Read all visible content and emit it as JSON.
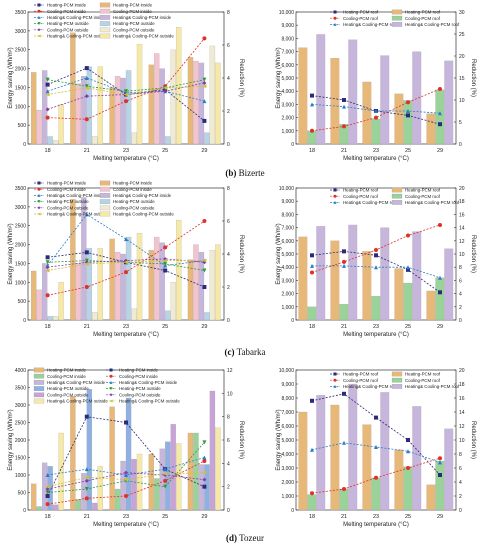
{
  "captions": [
    {
      "letter": "(b)",
      "text": "Bizerte"
    },
    {
      "letter": "(c)",
      "text": "Tabarka"
    },
    {
      "letter": "(d)",
      "text": "Tozeur"
    }
  ],
  "chart_data": [
    {
      "type": "bar",
      "panel": "b-left",
      "xlabel": "Melting temperature (°C)",
      "ylabel": "Energy saving (Wh/m²)",
      "y2label": "Reduction (%)",
      "categories": [
        "18",
        "21",
        "23",
        "25",
        "29"
      ],
      "ylim": [
        0,
        3500
      ],
      "yticks": [
        0,
        500,
        1000,
        1500,
        2000,
        2500,
        3000,
        3500
      ],
      "y2lim": [
        0,
        8
      ],
      "y2ticks": [
        0,
        2,
        4,
        6,
        8
      ],
      "legend_position": "top-left",
      "series": [
        {
          "name": "Heating-PCM inside",
          "kind": "bar",
          "color": "#e8b878",
          "values": [
            1900,
            2950,
            1500,
            2100,
            2300
          ]
        },
        {
          "name": "Cooling-PCM inside",
          "kind": "bar",
          "color": "#f3c4cf",
          "values": [
            900,
            1600,
            1800,
            2400,
            2200
          ]
        },
        {
          "name": "Heating& Cooling-PCM inside",
          "kind": "bar",
          "color": "#c7b6dc",
          "values": [
            1950,
            1800,
            1750,
            2000,
            2150
          ]
        },
        {
          "name": "Heating-PCM outside",
          "kind": "bar",
          "color": "#b7d4e7",
          "values": [
            200,
            2050,
            1950,
            200,
            300
          ]
        },
        {
          "name": "Cooling-PCM outside",
          "kind": "bar",
          "color": "#f0ead2",
          "values": [
            100,
            200,
            300,
            2500,
            2600
          ]
        },
        {
          "name": "Heating& Cooling-PCM outside",
          "kind": "bar",
          "color": "#f6e9a8",
          "values": [
            1050,
            2050,
            2650,
            3100,
            2150
          ]
        },
        {
          "name": "Heating-PCM inside",
          "kind": "line",
          "axis": "y2",
          "color": "#2b2b7a",
          "marker": "square",
          "values": [
            3.6,
            4.6,
            3.0,
            3.3,
            1.4
          ]
        },
        {
          "name": "Cooling-PCM inside",
          "kind": "line",
          "axis": "y2",
          "color": "#e0302a",
          "marker": "circle",
          "values": [
            1.6,
            1.5,
            2.6,
            3.5,
            6.4
          ]
        },
        {
          "name": "Heating& Cooling-PCM inside",
          "kind": "line",
          "axis": "y2",
          "color": "#2a7cc7",
          "marker": "triangle",
          "values": [
            3.2,
            4.0,
            3.1,
            3.2,
            2.6
          ]
        },
        {
          "name": "Heating-PCM outside",
          "kind": "line",
          "axis": "y2",
          "color": "#2a9b3a",
          "marker": "triangle-down",
          "values": [
            3.9,
            3.5,
            3.2,
            3.4,
            3.9
          ]
        },
        {
          "name": "Cooling-PCM outside",
          "kind": "line",
          "axis": "y2",
          "color": "#8a3aa8",
          "marker": "diamond",
          "values": [
            2.1,
            2.9,
            3.0,
            3.2,
            3.7
          ]
        },
        {
          "name": "Heating& Cooling-PCM outside",
          "kind": "line",
          "axis": "y2",
          "color": "#c9c233",
          "marker": "triangle-left",
          "values": [
            3.0,
            3.4,
            3.0,
            3.4,
            3.5
          ]
        }
      ]
    },
    {
      "type": "bar",
      "panel": "b-right",
      "xlabel": "Melting temperature (°C)",
      "ylabel": "Energy saving (Wh/m²)",
      "y2label": "Reduction (%)",
      "categories": [
        "18",
        "21",
        "23",
        "25",
        "29"
      ],
      "ylim": [
        0,
        10000
      ],
      "yticks": [
        0,
        1000,
        2000,
        3000,
        4000,
        5000,
        6000,
        7000,
        8000,
        9000,
        10000
      ],
      "y2lim": [
        0,
        30
      ],
      "y2ticks": [
        0,
        5,
        10,
        15,
        20,
        25,
        30
      ],
      "legend_position": "top",
      "series": [
        {
          "name": "Heating-PCM roof",
          "kind": "bar",
          "color": "#e8b878",
          "values": [
            7300,
            6500,
            4700,
            3800,
            2300
          ]
        },
        {
          "name": "Cooling-PCM roof",
          "kind": "bar",
          "color": "#9ad29a",
          "values": [
            1000,
            1500,
            1900,
            3300,
            4100
          ]
        },
        {
          "name": "Heating& Cooling-PCM roof",
          "kind": "bar",
          "color": "#c7b6dc",
          "values": [
            8300,
            7900,
            6700,
            7000,
            6300
          ]
        },
        {
          "name": "Heating-PCM roof",
          "kind": "line",
          "axis": "y2",
          "color": "#2b2b7a",
          "marker": "square",
          "values": [
            11,
            10,
            7.5,
            6.5,
            4.5
          ]
        },
        {
          "name": "Cooling-PCM roof",
          "kind": "line",
          "axis": "y2",
          "color": "#e0302a",
          "marker": "circle",
          "values": [
            3,
            4,
            6,
            9.5,
            12.5
          ]
        },
        {
          "name": "Heating& Cooling-PCM roof",
          "kind": "line",
          "axis": "y2",
          "color": "#2a7cc7",
          "marker": "triangle",
          "values": [
            9,
            8.5,
            7.5,
            7.5,
            7
          ]
        }
      ]
    },
    {
      "type": "bar",
      "panel": "c-left",
      "xlabel": "Melting temperature (°C)",
      "ylabel": "Energy saving (Wh/m²)",
      "y2label": "Reduction (%)",
      "categories": [
        "18",
        "21",
        "23",
        "25",
        "29"
      ],
      "ylim": [
        0,
        3500
      ],
      "yticks": [
        0,
        500,
        1000,
        1500,
        2000,
        2500,
        3000,
        3500
      ],
      "y2lim": [
        0,
        8
      ],
      "y2ticks": [
        0,
        2,
        4,
        6,
        8
      ],
      "legend_position": "top-left",
      "series": [
        {
          "name": "Heating-PCM inside",
          "kind": "bar",
          "color": "#e8b878",
          "values": [
            1300,
            3200,
            2150,
            1850,
            1600
          ]
        },
        {
          "name": "Cooling-PCM inside",
          "kind": "bar",
          "color": "#f3c4cf",
          "values": [
            800,
            1500,
            1800,
            2200,
            2000
          ]
        },
        {
          "name": "Heating& Cooling-PCM inside",
          "kind": "bar",
          "color": "#c7b6dc",
          "values": [
            1500,
            3250,
            1750,
            2050,
            1800
          ]
        },
        {
          "name": "Heating-PCM outside",
          "kind": "bar",
          "color": "#b7d4e7",
          "values": [
            100,
            1900,
            2200,
            250,
            200
          ]
        },
        {
          "name": "Cooling-PCM outside",
          "kind": "bar",
          "color": "#f0ead2",
          "values": [
            100,
            200,
            300,
            1000,
            1850
          ]
        },
        {
          "name": "Heating& Cooling-PCM outside",
          "kind": "bar",
          "color": "#f6e9a8",
          "values": [
            1000,
            1900,
            2300,
            2650,
            2000
          ]
        },
        {
          "name": "Heating-PCM inside",
          "kind": "line",
          "axis": "y2",
          "color": "#2b2b7a",
          "marker": "square",
          "values": [
            3.8,
            4.1,
            3.5,
            3.0,
            2.0
          ]
        },
        {
          "name": "Cooling-PCM inside",
          "kind": "line",
          "axis": "y2",
          "color": "#e0302a",
          "marker": "circle",
          "values": [
            1.5,
            2.0,
            2.9,
            4.4,
            6.0
          ]
        },
        {
          "name": "Heating& Cooling-PCM inside",
          "kind": "line",
          "axis": "y2",
          "color": "#2a7cc7",
          "marker": "triangle",
          "values": [
            3.3,
            6.4,
            4.9,
            3.3,
            3.6
          ]
        },
        {
          "name": "Heating-PCM outside",
          "kind": "line",
          "axis": "y2",
          "color": "#2a9b3a",
          "marker": "triangle-down",
          "values": [
            3.5,
            3.6,
            3.5,
            3.4,
            3.0
          ]
        },
        {
          "name": "Cooling-PCM outside",
          "kind": "line",
          "axis": "y2",
          "color": "#8a3aa8",
          "marker": "diamond",
          "values": [
            3.2,
            3.5,
            3.6,
            3.7,
            3.5
          ]
        },
        {
          "name": "Heating& Cooling-PCM outside",
          "kind": "line",
          "axis": "y2",
          "color": "#c9c233",
          "marker": "triangle-left",
          "values": [
            3.0,
            3.4,
            3.5,
            3.6,
            3.6
          ]
        }
      ]
    },
    {
      "type": "bar",
      "panel": "c-right",
      "xlabel": "Melting temperature (°C)",
      "ylabel": "Energy saving (Wh/m²)",
      "y2label": "Reduction (%)",
      "categories": [
        "18",
        "21",
        "23",
        "25",
        "29"
      ],
      "ylim": [
        0,
        10000
      ],
      "yticks": [
        0,
        1000,
        2000,
        3000,
        4000,
        5000,
        6000,
        7000,
        8000,
        9000,
        10000
      ],
      "y2lim": [
        0,
        20
      ],
      "y2ticks": [
        0,
        2,
        4,
        6,
        8,
        10,
        12,
        14,
        16,
        18,
        20
      ],
      "legend_position": "top",
      "series": [
        {
          "name": "Heating-PCM roof",
          "kind": "bar",
          "color": "#e8b878",
          "values": [
            6300,
            6000,
            5200,
            3900,
            2200
          ]
        },
        {
          "name": "Cooling-PCM roof",
          "kind": "bar",
          "color": "#9ad29a",
          "values": [
            1000,
            1200,
            1800,
            2800,
            3200
          ]
        },
        {
          "name": "Heating& Cooling-PCM roof",
          "kind": "bar",
          "color": "#c7b6dc",
          "values": [
            7100,
            7200,
            7000,
            6700,
            5400
          ]
        },
        {
          "name": "Heating-PCM roof",
          "kind": "line",
          "axis": "y2",
          "color": "#2b2b7a",
          "marker": "square",
          "values": [
            9.8,
            10.4,
            9.8,
            7.6,
            4.2
          ]
        },
        {
          "name": "Cooling-PCM roof",
          "kind": "line",
          "axis": "y2",
          "color": "#e0302a",
          "marker": "circle",
          "values": [
            7.2,
            8.8,
            10.6,
            12.8,
            14.4
          ]
        },
        {
          "name": "Heating& Cooling-PCM roof",
          "kind": "line",
          "axis": "y2",
          "color": "#2a7cc7",
          "marker": "triangle",
          "values": [
            8.2,
            8.2,
            8.0,
            8.0,
            6.4
          ]
        }
      ]
    },
    {
      "type": "bar",
      "panel": "d-left",
      "xlabel": "Melting temperature (°C)",
      "ylabel": "Energy saving (Wh/m²)",
      "y2label": "Reduction (%)",
      "categories": [
        "18",
        "21",
        "23",
        "25",
        "29"
      ],
      "ylim": [
        0,
        4000
      ],
      "yticks": [
        0,
        500,
        1000,
        1500,
        2000,
        2500,
        3000,
        3500,
        4000
      ],
      "y2lim": [
        0,
        12
      ],
      "y2ticks": [
        0,
        2,
        4,
        6,
        8,
        10,
        12
      ],
      "legend_position": "top",
      "series": [
        {
          "name": "Heating-PCM inside",
          "kind": "bar",
          "color": "#e8b878",
          "values": [
            750,
            3250,
            2950,
            1600,
            2200
          ]
        },
        {
          "name": "Cooling-PCM inside",
          "kind": "bar",
          "color": "#9ad29a",
          "values": [
            100,
            300,
            600,
            900,
            2200
          ]
        },
        {
          "name": "Heating& Cooling-PCM inside",
          "kind": "bar",
          "color": "#c7b6dc",
          "values": [
            1350,
            1050,
            1400,
            1750,
            1300
          ]
        },
        {
          "name": "Heating-PCM outside",
          "kind": "bar",
          "color": "#8fb0e0",
          "values": [
            1250,
            3450,
            3200,
            1950,
            1300
          ]
        },
        {
          "name": "Cooling-PCM outside",
          "kind": "bar",
          "color": "#c7a3d8",
          "values": [
            150,
            200,
            1450,
            2450,
            3400
          ]
        },
        {
          "name": "Heating& Cooling-PCM outside",
          "kind": "bar",
          "color": "#f6e9a8",
          "values": [
            2200,
            1250,
            1600,
            1900,
            2350
          ]
        },
        {
          "name": "Heating-PCM inside",
          "kind": "line",
          "axis": "y2",
          "color": "#2b2b7a",
          "marker": "square",
          "values": [
            1.2,
            8.0,
            7.5,
            3.5,
            2.0
          ]
        },
        {
          "name": "Cooling-PCM inside",
          "kind": "line",
          "axis": "y2",
          "color": "#e0302a",
          "marker": "circle",
          "values": [
            0.5,
            1.0,
            1.2,
            2.5,
            4.2
          ]
        },
        {
          "name": "Heating& Cooling-PCM inside",
          "kind": "line",
          "axis": "y2",
          "color": "#2a7cc7",
          "marker": "triangle",
          "values": [
            3.0,
            3.5,
            3.0,
            3.5,
            4.5
          ]
        },
        {
          "name": "Heating-PCM outside",
          "kind": "line",
          "axis": "y2",
          "color": "#2a9b3a",
          "marker": "triangle-down",
          "values": [
            1.5,
            1.8,
            2.5,
            2.0,
            5.8
          ]
        },
        {
          "name": "Cooling-PCM outside",
          "kind": "line",
          "axis": "y2",
          "color": "#8a3aa8",
          "marker": "diamond",
          "values": [
            1.8,
            2.5,
            3.2,
            3.0,
            2.6
          ]
        },
        {
          "name": "Heating& Cooling-PCM outside",
          "kind": "line",
          "axis": "y2",
          "color": "#c9c233",
          "marker": "triangle-left",
          "values": [
            2.0,
            2.8,
            2.6,
            3.1,
            3.2
          ]
        }
      ]
    },
    {
      "type": "bar",
      "panel": "d-right",
      "xlabel": "Melting temperature (°C)",
      "ylabel": "Energy saving (Wh/m²)",
      "y2label": "Reduction (%)",
      "categories": [
        "18",
        "21",
        "23",
        "25",
        "29"
      ],
      "ylim": [
        0,
        10000
      ],
      "yticks": [
        0,
        1000,
        2000,
        3000,
        4000,
        5000,
        6000,
        7000,
        8000,
        9000,
        10000
      ],
      "y2lim": [
        0,
        20
      ],
      "y2ticks": [
        0,
        2,
        4,
        6,
        8,
        10,
        12,
        14,
        16,
        18,
        20
      ],
      "legend_position": "top",
      "series": [
        {
          "name": "Heating-PCM roof",
          "kind": "bar",
          "color": "#e8b878",
          "values": [
            7000,
            7500,
            6100,
            4300,
            1800
          ]
        },
        {
          "name": "Cooling-PCM roof",
          "kind": "bar",
          "color": "#9ad29a",
          "values": [
            1100,
            1500,
            2300,
            3100,
            3500
          ]
        },
        {
          "name": "Heating& Cooling-PCM roof",
          "kind": "bar",
          "color": "#c7b6dc",
          "values": [
            8200,
            9000,
            8400,
            7400,
            5800
          ]
        },
        {
          "name": "Heating-PCM roof",
          "kind": "line",
          "axis": "y2",
          "color": "#2b2b7a",
          "marker": "square",
          "values": [
            15.6,
            16.6,
            13.2,
            10.0,
            5.0
          ]
        },
        {
          "name": "Cooling-PCM roof",
          "kind": "line",
          "axis": "y2",
          "color": "#e0302a",
          "marker": "circle",
          "values": [
            2.4,
            3.0,
            4.6,
            6.0,
            7.4
          ]
        },
        {
          "name": "Heating& Cooling-PCM roof",
          "kind": "line",
          "axis": "y2",
          "color": "#2a7cc7",
          "marker": "triangle",
          "values": [
            8.6,
            9.6,
            9.0,
            8.4,
            6.8
          ]
        }
      ]
    }
  ]
}
